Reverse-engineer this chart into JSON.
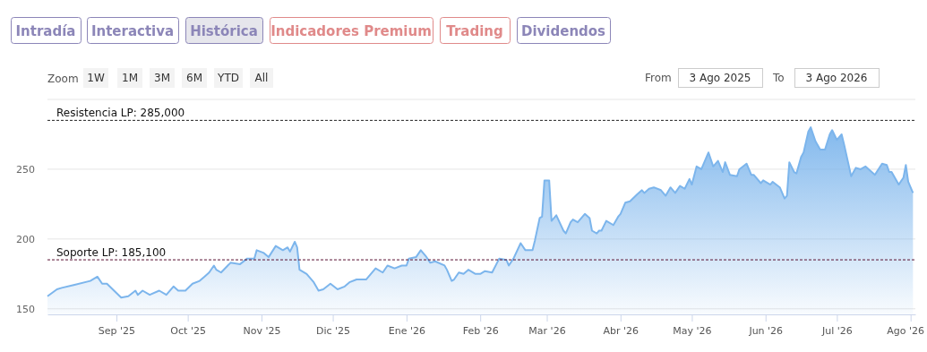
{
  "chart_data": {
    "type": "area",
    "annotations": [
      "Intradía",
      "Interactiva",
      "Histórica",
      "Indicadores Premium",
      "Trading",
      "Dividendos",
      "Zoom",
      "1W",
      "1M",
      "3M",
      "6M",
      "YTD",
      "All",
      "From",
      "3 Ago 2025",
      "To",
      "3 Ago 2026"
    ],
    "x": [
      "2025-08-03",
      "2025-08-07",
      "2025-08-09",
      "2025-08-14",
      "2025-08-21",
      "2025-08-24",
      "2025-08-26",
      "2025-08-28",
      "2025-08-31",
      "2025-09-03",
      "2025-09-06",
      "2025-09-09",
      "2025-09-10",
      "2025-09-12",
      "2025-09-15",
      "2025-09-19",
      "2025-09-22",
      "2025-09-25",
      "2025-09-27",
      "2025-09-30",
      "2025-10-03",
      "2025-10-06",
      "2025-10-08",
      "2025-10-10",
      "2025-10-12",
      "2025-10-13",
      "2025-10-15",
      "2025-10-19",
      "2025-10-23",
      "2025-10-26",
      "2025-10-29",
      "2025-10-30",
      "2025-11-02",
      "2025-11-04",
      "2025-11-07",
      "2025-11-10",
      "2025-11-12",
      "2025-11-13",
      "2025-11-15",
      "2025-11-16",
      "2025-11-17",
      "2025-11-20",
      "2025-11-23",
      "2025-11-25",
      "2025-11-27",
      "2025-11-30",
      "2025-12-03",
      "2025-12-06",
      "2025-12-08",
      "2025-12-11",
      "2025-12-15",
      "2025-12-19",
      "2025-12-22",
      "2025-12-24",
      "2025-12-27",
      "2025-12-30",
      "2026-01-01",
      "2026-01-02",
      "2026-01-05",
      "2026-01-07",
      "2026-01-09",
      "2026-01-11",
      "2026-01-13",
      "2026-01-17",
      "2026-01-18",
      "2026-01-20",
      "2026-01-21",
      "2026-01-23",
      "2026-01-25",
      "2026-01-27",
      "2026-01-30",
      "2026-02-01",
      "2026-02-03",
      "2026-02-06",
      "2026-02-09",
      "2026-02-12",
      "2026-02-13",
      "2026-02-15",
      "2026-02-18",
      "2026-02-20",
      "2026-02-23",
      "2026-02-24",
      "2026-02-26",
      "2026-02-27",
      "2026-02-28",
      "2026-03-02",
      "2026-03-03",
      "2026-03-05",
      "2026-03-08",
      "2026-03-09",
      "2026-03-11",
      "2026-03-12",
      "2026-03-14",
      "2026-03-17",
      "2026-03-19",
      "2026-03-20",
      "2026-03-22",
      "2026-03-23",
      "2026-03-24",
      "2026-03-26",
      "2026-03-29",
      "2026-03-31",
      "2026-04-01",
      "2026-04-03",
      "2026-04-05",
      "2026-04-08",
      "2026-04-10",
      "2026-04-11",
      "2026-04-13",
      "2026-04-15",
      "2026-04-18",
      "2026-04-20",
      "2026-04-22",
      "2026-04-24",
      "2026-04-26",
      "2026-04-28",
      "2026-04-30",
      "2026-05-01",
      "2026-05-03",
      "2026-05-05",
      "2026-05-08",
      "2026-05-10",
      "2026-05-12",
      "2026-05-14",
      "2026-05-15",
      "2026-05-17",
      "2026-05-20",
      "2026-05-21",
      "2026-05-24",
      "2026-05-26",
      "2026-05-27",
      "2026-05-30",
      "2026-05-31",
      "2026-06-03",
      "2026-06-04",
      "2026-06-07",
      "2026-06-09",
      "2026-06-10",
      "2026-06-11",
      "2026-06-13",
      "2026-06-14",
      "2026-06-16",
      "2026-06-17",
      "2026-06-19",
      "2026-06-20",
      "2026-06-22",
      "2026-06-24",
      "2026-06-26",
      "2026-06-28",
      "2026-06-29",
      "2026-07-01",
      "2026-07-03",
      "2026-07-04",
      "2026-07-07",
      "2026-07-09",
      "2026-07-11",
      "2026-07-13",
      "2026-07-15",
      "2026-07-17",
      "2026-07-20",
      "2026-07-22",
      "2026-07-23",
      "2026-07-24",
      "2026-07-27",
      "2026-07-29",
      "2026-07-30",
      "2026-07-31",
      "2026-08-02"
    ],
    "series": [
      {
        "color": "#7cb5ec",
        "values": [
          159,
          164,
          165,
          167,
          170,
          173,
          168,
          168,
          163,
          158,
          159,
          163,
          160,
          163,
          160,
          163,
          160,
          166,
          163,
          163,
          168,
          170,
          173,
          176,
          181,
          178,
          176,
          183,
          182,
          186,
          186,
          192,
          190,
          187,
          195,
          192,
          194,
          191,
          198,
          194,
          178,
          175,
          169,
          163,
          164,
          168,
          164,
          166,
          169,
          171,
          171,
          179,
          176,
          181,
          179,
          181,
          181,
          186,
          187,
          192,
          188,
          183,
          184,
          181,
          178,
          170,
          171,
          176,
          175,
          178,
          175,
          175,
          177,
          176,
          186,
          185,
          181,
          186,
          197,
          192,
          192,
          199,
          215,
          216,
          242,
          242,
          213,
          217,
          206,
          204,
          212,
          214,
          212,
          218,
          215,
          206,
          204,
          206,
          206,
          213,
          210,
          216,
          218,
          226,
          227,
          232,
          235,
          233,
          236,
          237,
          235,
          231,
          237,
          233,
          238,
          236,
          243,
          239,
          252,
          250,
          262,
          252,
          256,
          248,
          255,
          246,
          245,
          250,
          254,
          246,
          246,
          240,
          242,
          239,
          241,
          237,
          229,
          231,
          255,
          248,
          247,
          259,
          262,
          277,
          280,
          270,
          264,
          264,
          275,
          278,
          271,
          275,
          268,
          245,
          251,
          250,
          252,
          249,
          246,
          254,
          253,
          248,
          248,
          239,
          244,
          253,
          241,
          233
        ]
      }
    ],
    "xlim": [
      "2025-08-03",
      "2026-08-03"
    ],
    "xticks": [
      {
        "value": "2025-09-01",
        "label": "Sep '25"
      },
      {
        "value": "2025-10-01",
        "label": "Oct '25"
      },
      {
        "value": "2025-11-01",
        "label": "Nov '25"
      },
      {
        "value": "2025-12-01",
        "label": "Dic '25"
      },
      {
        "value": "2026-01-01",
        "label": "Ene '26"
      },
      {
        "value": "2026-02-01",
        "label": "Feb '26"
      },
      {
        "value": "2026-03-01",
        "label": "Mar '26"
      },
      {
        "value": "2026-04-01",
        "label": "Abr '26"
      },
      {
        "value": "2026-05-01",
        "label": "May '26"
      },
      {
        "value": "2026-06-01",
        "label": "Jun '26"
      },
      {
        "value": "2026-07-01",
        "label": "Jul '26"
      },
      {
        "value": "2026-08-01",
        "label": "Ago '26"
      }
    ],
    "ylim": [
      146,
      300
    ],
    "yticks": [
      150,
      200,
      250,
      {
        "value": 300,
        "label": null
      }
    ],
    "grid": "y",
    "ref_lines": [
      {
        "axis": "y",
        "value": 285,
        "label": "Resistencia LP: 285,000",
        "color": "#222222",
        "line_style": "dashed"
      },
      {
        "axis": "y",
        "value": 185.1,
        "label": "Soporte LP: 185,100",
        "color": "#5a1030",
        "line_style": "dashed"
      }
    ]
  }
}
